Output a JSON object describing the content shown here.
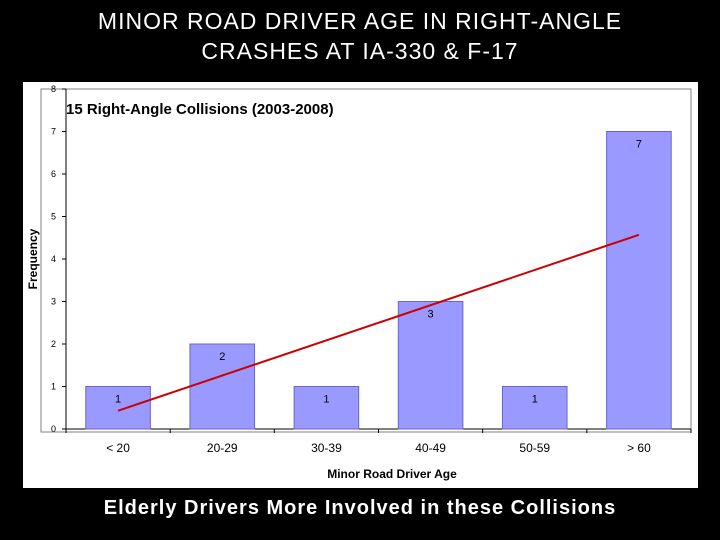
{
  "slide": {
    "title_line1": "MINOR ROAD DRIVER AGE IN RIGHT-ANGLE",
    "title_line2": "CRASHES AT IA-330 & F-17",
    "caption": "Elderly Drivers More Involved in these Collisions"
  },
  "chart_data": {
    "type": "bar",
    "title": "15 Right-Angle Collisions (2003-2008)",
    "xlabel": "Minor Road Driver Age",
    "ylabel": "Frequency",
    "categories": [
      "< 20",
      "20-29",
      "30-39",
      "40-49",
      "50-59",
      "> 60"
    ],
    "values": [
      1,
      2,
      1,
      3,
      1,
      7
    ],
    "data_labels": [
      "1",
      "2",
      "1",
      "3",
      "1",
      "7"
    ],
    "ylim": [
      0,
      8
    ],
    "yticks": [
      0,
      1,
      2,
      3,
      4,
      5,
      6,
      7,
      8
    ],
    "grid": false,
    "trendline": {
      "type": "linear",
      "start": 0.43,
      "end": 4.57
    },
    "colors": {
      "bar": "#9999ff",
      "bar_border": "#6666cc",
      "trendline": "#cc0000"
    }
  }
}
